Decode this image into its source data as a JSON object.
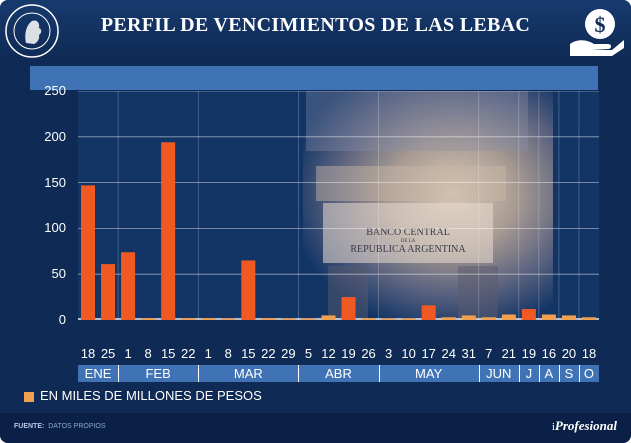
{
  "header": {
    "title": "PERFIL DE VENCIMIENTOS DE LAS LEBAC",
    "seal_text": "BANCO CENTRAL DE LA REPUBLICA ARGENTINA",
    "money_icon": "hand-dollar-icon"
  },
  "photo_sign": {
    "line1": "BANCO CENTRAL",
    "line2": "DE LA",
    "line3": "REPUBLICA ARGENTINA"
  },
  "chart_data": {
    "type": "bar",
    "ylim": [
      0,
      250
    ],
    "yticks": [
      0,
      50,
      100,
      150,
      200,
      250
    ],
    "categories": [
      "18",
      "25",
      "1",
      "8",
      "15",
      "22",
      "1",
      "8",
      "15",
      "22",
      "29",
      "5",
      "12",
      "19",
      "26",
      "3",
      "10",
      "17",
      "24",
      "31",
      "7",
      "21",
      "19",
      "16",
      "20",
      "18"
    ],
    "values": [
      147,
      61,
      74,
      2,
      194,
      2,
      2,
      1,
      65,
      2,
      1,
      1,
      5,
      25,
      2,
      1,
      1,
      16,
      3,
      5,
      3,
      6,
      12,
      6,
      5,
      3
    ],
    "months": [
      {
        "label": "ENE",
        "count": 2
      },
      {
        "label": "FEB",
        "count": 4
      },
      {
        "label": "MAR",
        "count": 5
      },
      {
        "label": "ABR",
        "count": 4
      },
      {
        "label": "MAY",
        "count": 5
      },
      {
        "label": "JUN",
        "count": 2
      },
      {
        "label": "J",
        "count": 1
      },
      {
        "label": "A",
        "count": 1
      },
      {
        "label": "S",
        "count": 1
      },
      {
        "label": "O",
        "count": 1
      }
    ],
    "bar_color": "#f05a22",
    "small_bar_color": "#f0a050",
    "grid": true
  },
  "legend": {
    "label": "EN MILES DE MILLONES DE PESOS",
    "color": "#f0a050"
  },
  "footer": {
    "source_label": "FUENTE:",
    "source_value": "DATOS PROPIOS",
    "brand_i": "i",
    "brand_name": "Profesional"
  }
}
